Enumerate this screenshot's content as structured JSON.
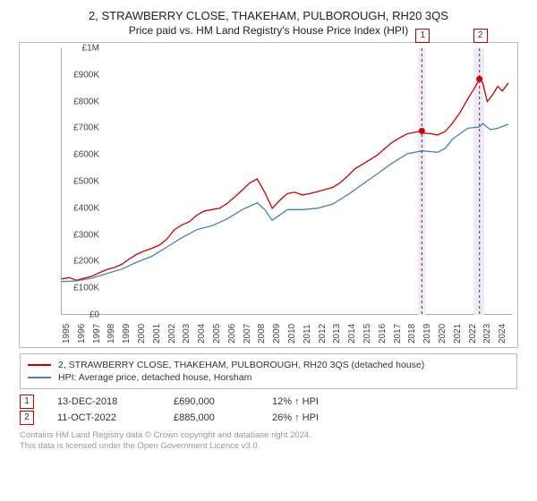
{
  "title": "2, STRAWBERRY CLOSE, THAKEHAM, PULBOROUGH, RH20 3QS",
  "subtitle": "Price paid vs. HM Land Registry's House Price Index (HPI)",
  "chart": {
    "type": "line",
    "background_color": "#ffffff",
    "border_color": "#bbbbbb",
    "axis_color": "#aaaaaa",
    "label_color": "#444444",
    "label_fontsize": 10,
    "x_years": [
      1995,
      1996,
      1997,
      1998,
      1999,
      2000,
      2001,
      2002,
      2003,
      2004,
      2005,
      2006,
      2007,
      2008,
      2009,
      2010,
      2011,
      2012,
      2013,
      2014,
      2015,
      2016,
      2017,
      2018,
      2019,
      2020,
      2021,
      2022,
      2023,
      2024
    ],
    "y_ticks": [
      0,
      100,
      200,
      300,
      400,
      500,
      600,
      700,
      800,
      900,
      1000
    ],
    "y_tick_labels": [
      "£0",
      "£100K",
      "£200K",
      "£300K",
      "£400K",
      "£500K",
      "£600K",
      "£700K",
      "£800K",
      "£900K",
      "£1M"
    ],
    "ylim": [
      0,
      1000
    ],
    "xlim": [
      1995,
      2025
    ],
    "series": [
      {
        "name": "2, STRAWBERRY CLOSE, THAKEHAM, PULBOROUGH, RH20 3QS (detached house)",
        "color": "#cc0000",
        "line_width": 1.3,
        "data": [
          [
            1995,
            135
          ],
          [
            1995.5,
            140
          ],
          [
            1996,
            130
          ],
          [
            1996.5,
            138
          ],
          [
            1997,
            145
          ],
          [
            1997.5,
            158
          ],
          [
            1998,
            170
          ],
          [
            1998.5,
            178
          ],
          [
            1999,
            190
          ],
          [
            1999.5,
            210
          ],
          [
            2000,
            228
          ],
          [
            2000.5,
            240
          ],
          [
            2001,
            250
          ],
          [
            2001.5,
            262
          ],
          [
            2002,
            285
          ],
          [
            2002.5,
            320
          ],
          [
            2003,
            338
          ],
          [
            2003.5,
            350
          ],
          [
            2004,
            375
          ],
          [
            2004.5,
            390
          ],
          [
            2005,
            395
          ],
          [
            2005.5,
            400
          ],
          [
            2006,
            418
          ],
          [
            2006.5,
            442
          ],
          [
            2007,
            468
          ],
          [
            2007.5,
            495
          ],
          [
            2008,
            510
          ],
          [
            2008.5,
            460
          ],
          [
            2009,
            400
          ],
          [
            2009.5,
            430
          ],
          [
            2010,
            455
          ],
          [
            2010.5,
            460
          ],
          [
            2011,
            450
          ],
          [
            2011.5,
            455
          ],
          [
            2012,
            462
          ],
          [
            2012.5,
            470
          ],
          [
            2013,
            478
          ],
          [
            2013.5,
            495
          ],
          [
            2014,
            520
          ],
          [
            2014.5,
            548
          ],
          [
            2015,
            565
          ],
          [
            2015.5,
            582
          ],
          [
            2016,
            600
          ],
          [
            2016.5,
            625
          ],
          [
            2017,
            648
          ],
          [
            2017.5,
            665
          ],
          [
            2018,
            680
          ],
          [
            2018.5,
            685
          ],
          [
            2018.95,
            690
          ],
          [
            2019,
            682
          ],
          [
            2019.5,
            680
          ],
          [
            2020,
            675
          ],
          [
            2020.5,
            688
          ],
          [
            2021,
            720
          ],
          [
            2021.5,
            760
          ],
          [
            2022,
            810
          ],
          [
            2022.5,
            855
          ],
          [
            2022.78,
            885
          ],
          [
            2023,
            870
          ],
          [
            2023.3,
            800
          ],
          [
            2023.7,
            830
          ],
          [
            2024,
            858
          ],
          [
            2024.3,
            840
          ],
          [
            2024.7,
            870
          ]
        ]
      },
      {
        "name": "HPI: Average price, detached house, Horsham",
        "color": "#4a7fb8",
        "line_width": 1.3,
        "data": [
          [
            1995,
            125
          ],
          [
            1996,
            128
          ],
          [
            1997,
            138
          ],
          [
            1998,
            155
          ],
          [
            1999,
            172
          ],
          [
            2000,
            198
          ],
          [
            2001,
            220
          ],
          [
            2002,
            255
          ],
          [
            2003,
            290
          ],
          [
            2004,
            320
          ],
          [
            2005,
            335
          ],
          [
            2006,
            360
          ],
          [
            2007,
            395
          ],
          [
            2008,
            420
          ],
          [
            2008.5,
            395
          ],
          [
            2009,
            355
          ],
          [
            2009.5,
            375
          ],
          [
            2010,
            395
          ],
          [
            2011,
            395
          ],
          [
            2012,
            400
          ],
          [
            2013,
            415
          ],
          [
            2014,
            450
          ],
          [
            2015,
            490
          ],
          [
            2016,
            530
          ],
          [
            2017,
            570
          ],
          [
            2018,
            605
          ],
          [
            2018.95,
            615
          ],
          [
            2019,
            615
          ],
          [
            2020,
            610
          ],
          [
            2020.5,
            625
          ],
          [
            2021,
            660
          ],
          [
            2022,
            700
          ],
          [
            2022.78,
            705
          ],
          [
            2023,
            718
          ],
          [
            2023.5,
            695
          ],
          [
            2024,
            700
          ],
          [
            2024.7,
            715
          ]
        ]
      }
    ],
    "shaded_bands": [
      {
        "from": 2018.7,
        "to": 2019.2,
        "color": "#e6eef7"
      },
      {
        "from": 2022.4,
        "to": 2023.1,
        "color": "#e6eef7"
      }
    ],
    "vertical_markers": [
      {
        "x": 2018.95,
        "color": "#cc0000",
        "dash": "3,3",
        "label": "1",
        "point_y": 690
      },
      {
        "x": 2022.78,
        "color": "#cc0000",
        "dash": "3,3",
        "label": "2",
        "point_y": 885
      }
    ],
    "marker_point_color": "#cc0000",
    "marker_point_radius": 3.5
  },
  "legend": {
    "items": [
      {
        "color": "#cc0000",
        "text": "2, STRAWBERRY CLOSE, THAKEHAM, PULBOROUGH, RH20 3QS (detached house)"
      },
      {
        "color": "#4a7fb8",
        "text": "HPI: Average price, detached house, Horsham"
      }
    ]
  },
  "datapoints": [
    {
      "badge": "1",
      "color": "#cc0000",
      "date": "13-DEC-2018",
      "price": "£690,000",
      "delta": "12% ↑ HPI"
    },
    {
      "badge": "2",
      "color": "#cc0000",
      "date": "11-OCT-2022",
      "price": "£885,000",
      "delta": "26% ↑ HPI"
    }
  ],
  "footnotes": [
    "Contains HM Land Registry data © Crown copyright and database right 2024.",
    "This data is licensed under the Open Government Licence v3.0."
  ]
}
